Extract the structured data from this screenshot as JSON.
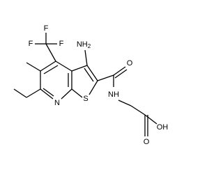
{
  "molecule": {
    "atoms": [
      {
        "label": "F"
      },
      {
        "label": "F"
      },
      {
        "label": "F"
      },
      {
        "label": "NH",
        "subscript": "2"
      },
      {
        "label": "N"
      },
      {
        "label": "S"
      },
      {
        "label": "O"
      },
      {
        "label": "NH"
      },
      {
        "label": "O"
      },
      {
        "label": "OH"
      }
    ]
  }
}
